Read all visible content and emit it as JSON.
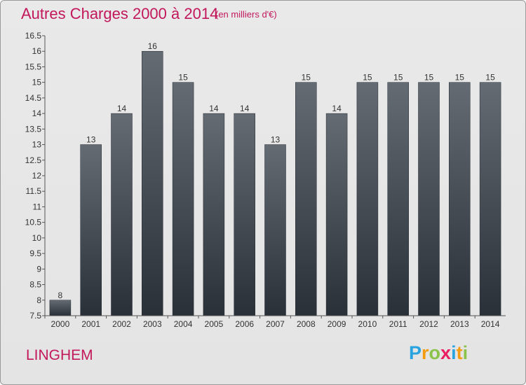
{
  "header": {
    "title": "Autres Charges 2000 à 2014",
    "subtitle": "(en milliers d'€)"
  },
  "footer": {
    "commune": "LINGHEM",
    "logo_letters": [
      {
        "char": "P",
        "color": "#29a3e0"
      },
      {
        "char": "r",
        "color": "#f39c12"
      },
      {
        "char": "o",
        "color": "#8bc34a"
      },
      {
        "char": "x",
        "color": "#e91e63"
      },
      {
        "char": "i",
        "color": "#29a3e0"
      },
      {
        "char": "t",
        "color": "#f39c12"
      },
      {
        "char": "i",
        "color": "#8bc34a"
      }
    ]
  },
  "chart_data": {
    "type": "bar",
    "title": "Autres Charges 2000 à 2014",
    "subtitle": "(en milliers d'€)",
    "categories": [
      "2000",
      "2001",
      "2002",
      "2003",
      "2004",
      "2005",
      "2006",
      "2007",
      "2008",
      "2009",
      "2010",
      "2011",
      "2012",
      "2013",
      "2014"
    ],
    "values": [
      8,
      13,
      14,
      16,
      15,
      14,
      14,
      13,
      15,
      14,
      15,
      15,
      15,
      15,
      15
    ],
    "data_labels": [
      "8",
      "13",
      "14",
      "16",
      "15",
      "14",
      "14",
      "13",
      "15",
      "14",
      "15",
      "15",
      "15",
      "15",
      "15"
    ],
    "ylim": [
      7.5,
      16.5
    ],
    "yticks": [
      "7.5",
      "8",
      "8.5",
      "9",
      "9.5",
      "10",
      "10.5",
      "11",
      "11.5",
      "12",
      "12.5",
      "13",
      "13.5",
      "14",
      "14.5",
      "15",
      "15.5",
      "16",
      "16.5"
    ],
    "ytick_values": [
      7.5,
      8,
      8.5,
      9,
      9.5,
      10,
      10.5,
      11,
      11.5,
      12,
      12.5,
      13,
      13.5,
      14,
      14.5,
      15,
      15.5,
      16,
      16.5
    ],
    "grid": false,
    "legend": "none",
    "bar_color_top": "#646b73",
    "bar_color_bottom": "#2a3038"
  }
}
